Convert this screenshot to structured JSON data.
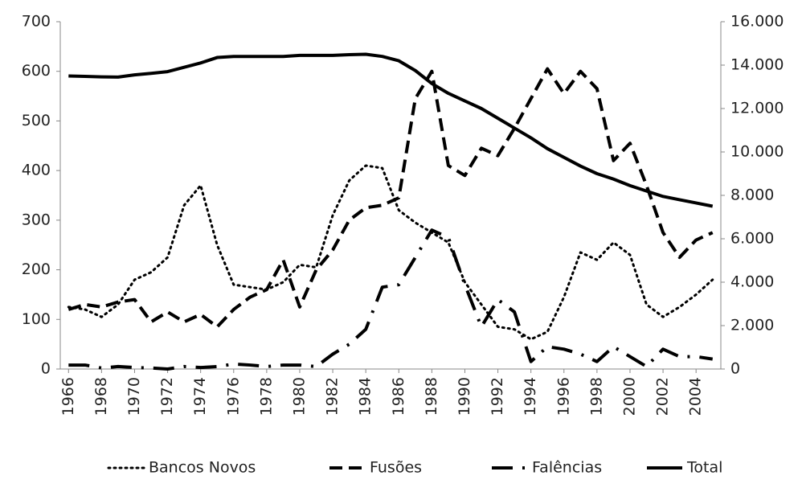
{
  "chart_data": {
    "type": "line",
    "x": [
      1966,
      1967,
      1968,
      1969,
      1970,
      1971,
      1972,
      1973,
      1974,
      1975,
      1976,
      1977,
      1978,
      1979,
      1980,
      1981,
      1982,
      1983,
      1984,
      1985,
      1986,
      1987,
      1988,
      1989,
      1990,
      1991,
      1992,
      1993,
      1994,
      1995,
      1996,
      1997,
      1998,
      1999,
      2000,
      2001,
      2002,
      2003,
      2004,
      2005
    ],
    "xlim": [
      1965.5,
      2005.5
    ],
    "xticks": [
      1966,
      1968,
      1970,
      1972,
      1974,
      1976,
      1978,
      1980,
      1982,
      1984,
      1986,
      1988,
      1990,
      1992,
      1994,
      1996,
      1998,
      2000,
      2002,
      2004
    ],
    "ylim": [
      0,
      700
    ],
    "yticks": [
      0,
      100,
      200,
      300,
      400,
      500,
      600,
      700
    ],
    "y2lim": [
      0,
      16000
    ],
    "y2ticks": [
      {
        "value": 0,
        "label": "0"
      },
      {
        "value": 2000,
        "label": "2.000"
      },
      {
        "value": 4000,
        "label": "4.000"
      },
      {
        "value": 6000,
        "label": "6.000"
      },
      {
        "value": 8000,
        "label": "8.000"
      },
      {
        "value": 10000,
        "label": "10.000"
      },
      {
        "value": 12000,
        "label": "12.000"
      },
      {
        "value": 14000,
        "label": "14.000"
      },
      {
        "value": 16000,
        "label": "16.000"
      }
    ],
    "legend": "bottom",
    "series": [
      {
        "name": "Bancos Novos",
        "color": "#000000",
        "dash": "dotted",
        "values": [
          125,
          120,
          105,
          130,
          180,
          195,
          225,
          330,
          370,
          250,
          170,
          165,
          160,
          175,
          210,
          205,
          310,
          380,
          410,
          405,
          320,
          295,
          275,
          255,
          175,
          130,
          85,
          80,
          60,
          75,
          145,
          235,
          220,
          255,
          230,
          130,
          105,
          125,
          150,
          180
        ]
      },
      {
        "name": "Fusões",
        "color": "#000000",
        "dash": "dashed",
        "values": [
          120,
          130,
          125,
          135,
          140,
          95,
          115,
          95,
          110,
          85,
          120,
          145,
          160,
          220,
          125,
          200,
          240,
          300,
          325,
          330,
          345,
          545,
          600,
          410,
          390,
          445,
          430,
          485,
          545,
          605,
          555,
          600,
          565,
          420,
          455,
          370,
          275,
          225,
          260,
          275
        ]
      },
      {
        "name": "Falências",
        "color": "#000000",
        "dash": "longdashdot",
        "values": [
          8,
          8,
          2,
          5,
          3,
          2,
          0,
          5,
          3,
          5,
          10,
          8,
          5,
          8,
          8,
          5,
          30,
          50,
          80,
          165,
          170,
          225,
          280,
          265,
          170,
          85,
          140,
          115,
          15,
          45,
          40,
          30,
          15,
          45,
          25,
          5,
          40,
          25,
          25,
          20
        ]
      },
      {
        "name": "Total",
        "color": "#000000",
        "dash": "solid",
        "axis": "y2",
        "values": [
          13500,
          13480,
          13460,
          13450,
          13550,
          13620,
          13700,
          13900,
          14100,
          14350,
          14400,
          14400,
          14400,
          14400,
          14450,
          14450,
          14450,
          14480,
          14500,
          14400,
          14200,
          13750,
          13150,
          12700,
          12350,
          12000,
          11550,
          11100,
          10650,
          10150,
          9750,
          9350,
          9000,
          8750,
          8450,
          8200,
          7950,
          7800,
          7650,
          7500
        ]
      }
    ]
  }
}
